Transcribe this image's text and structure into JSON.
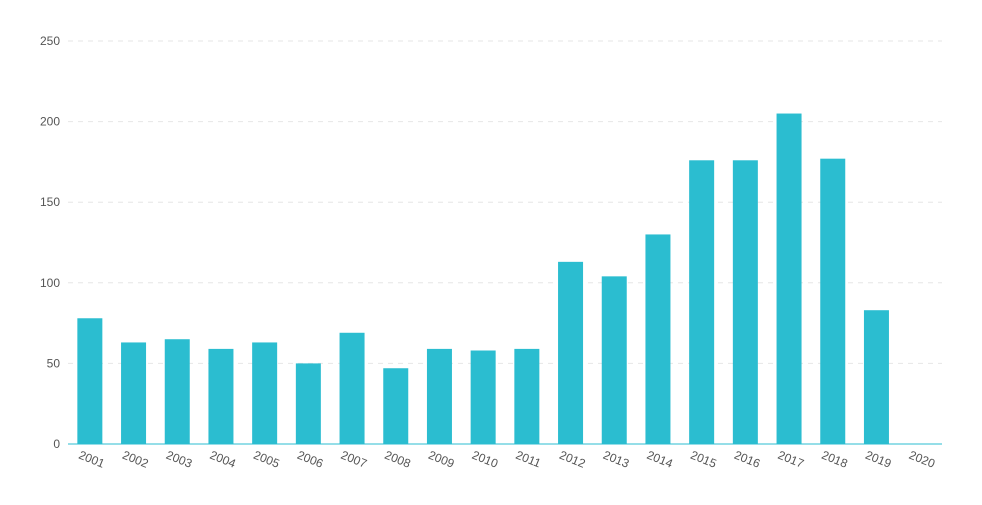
{
  "chart_data": {
    "type": "bar",
    "title": "",
    "xlabel": "",
    "ylabel": "",
    "categories": [
      "2001",
      "2002",
      "2003",
      "2004",
      "2005",
      "2006",
      "2007",
      "2008",
      "2009",
      "2010",
      "2011",
      "2012",
      "2013",
      "2014",
      "2015",
      "2016",
      "2017",
      "2018",
      "2019",
      "2020"
    ],
    "values": [
      78,
      63,
      65,
      59,
      63,
      50,
      69,
      47,
      59,
      58,
      59,
      113,
      104,
      130,
      176,
      176,
      205,
      177,
      83,
      0
    ],
    "ylim": [
      0,
      250
    ],
    "yticks": [
      0,
      50,
      100,
      150,
      200,
      250
    ],
    "grid": true,
    "legend": "none",
    "colors": {
      "bar": "#2bbdd0",
      "axis": "#2bbdd0",
      "grid": "#e6e6e6",
      "text": "#555555"
    }
  }
}
